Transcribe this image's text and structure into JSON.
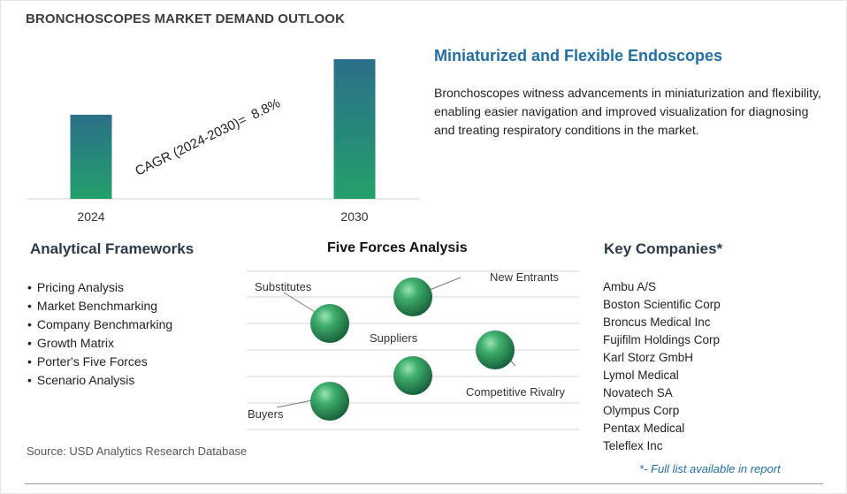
{
  "title": "BRONCHOSCOPES MARKET DEMAND OUTLOOK",
  "chart_data": {
    "type": "bar",
    "categories": [
      "2024",
      "2030"
    ],
    "values": [
      1.0,
      1.66
    ],
    "cagr_label": "CAGR (2024-2030)=",
    "cagr_value": "8.8%",
    "grid": false,
    "colors": {
      "bar_top": "#2b6f8a",
      "bar_bottom": "#23a06a"
    }
  },
  "feature": {
    "title": "Miniaturized and Flexible Endoscopes",
    "text": "Bronchoscopes witness advancements in miniaturization and flexibility, enabling easier navigation and improved visualization for diagnosing and treating respiratory conditions in the market."
  },
  "frameworks": {
    "title": "Analytical Frameworks",
    "items": [
      "Pricing Analysis",
      "Market Benchmarking",
      "Company Benchmarking",
      "Growth Matrix",
      "Porter's Five Forces",
      "Scenario Analysis"
    ]
  },
  "forces": {
    "title": "Five Forces Analysis",
    "labels": {
      "substitutes": "Substitutes",
      "new_entrants": "New Entrants",
      "suppliers": "Suppliers",
      "competitive_rivalry": "Competitive Rivalry",
      "buyers": "Buyers"
    }
  },
  "companies": {
    "title": "Key Companies*",
    "items": [
      "Ambu A/S",
      "Boston Scientific Corp",
      "Broncus Medical Inc",
      "Fujifilm Holdings Corp",
      "Karl Storz GmbH",
      "Lymol Medical",
      "Novatech SA",
      "Olympus Corp",
      "Pentax Medical",
      "Teleflex Inc"
    ],
    "footnote": "*- Full list available in report"
  },
  "source": "Source: USD Analytics Research Database",
  "colors": {
    "accent": "#1f6fa5",
    "sphere": "#2e9a5a"
  }
}
